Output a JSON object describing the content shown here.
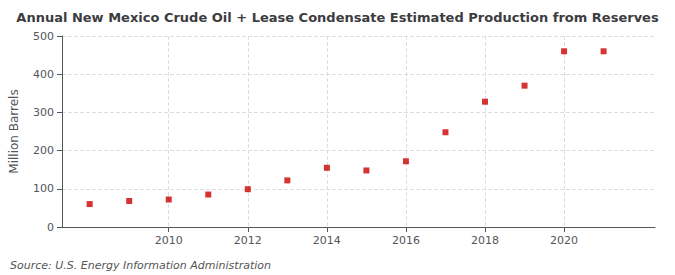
{
  "chart_data": {
    "type": "scatter",
    "title": "Annual New Mexico Crude Oil + Lease Condensate Estimated Production from Reserves",
    "ylabel": "Million Barrels",
    "annotations": [
      "Source: U.S. Energy Information Administration"
    ],
    "x": [
      2008,
      2009,
      2010,
      2011,
      2012,
      2013,
      2014,
      2015,
      2016,
      2017,
      2018,
      2019,
      2020,
      2021
    ],
    "values": [
      60,
      68,
      72,
      85,
      99,
      122,
      155,
      148,
      172,
      248,
      328,
      370,
      460,
      460
    ],
    "color": "#cc0000",
    "marker": "square",
    "xlim": [
      2007.3,
      2022.3
    ],
    "xticks": [
      2010,
      2012,
      2014,
      2016,
      2018,
      2020
    ],
    "ylim": [
      0,
      500
    ],
    "yticks": [
      0,
      100,
      200,
      300,
      400,
      500
    ],
    "grid": true
  }
}
